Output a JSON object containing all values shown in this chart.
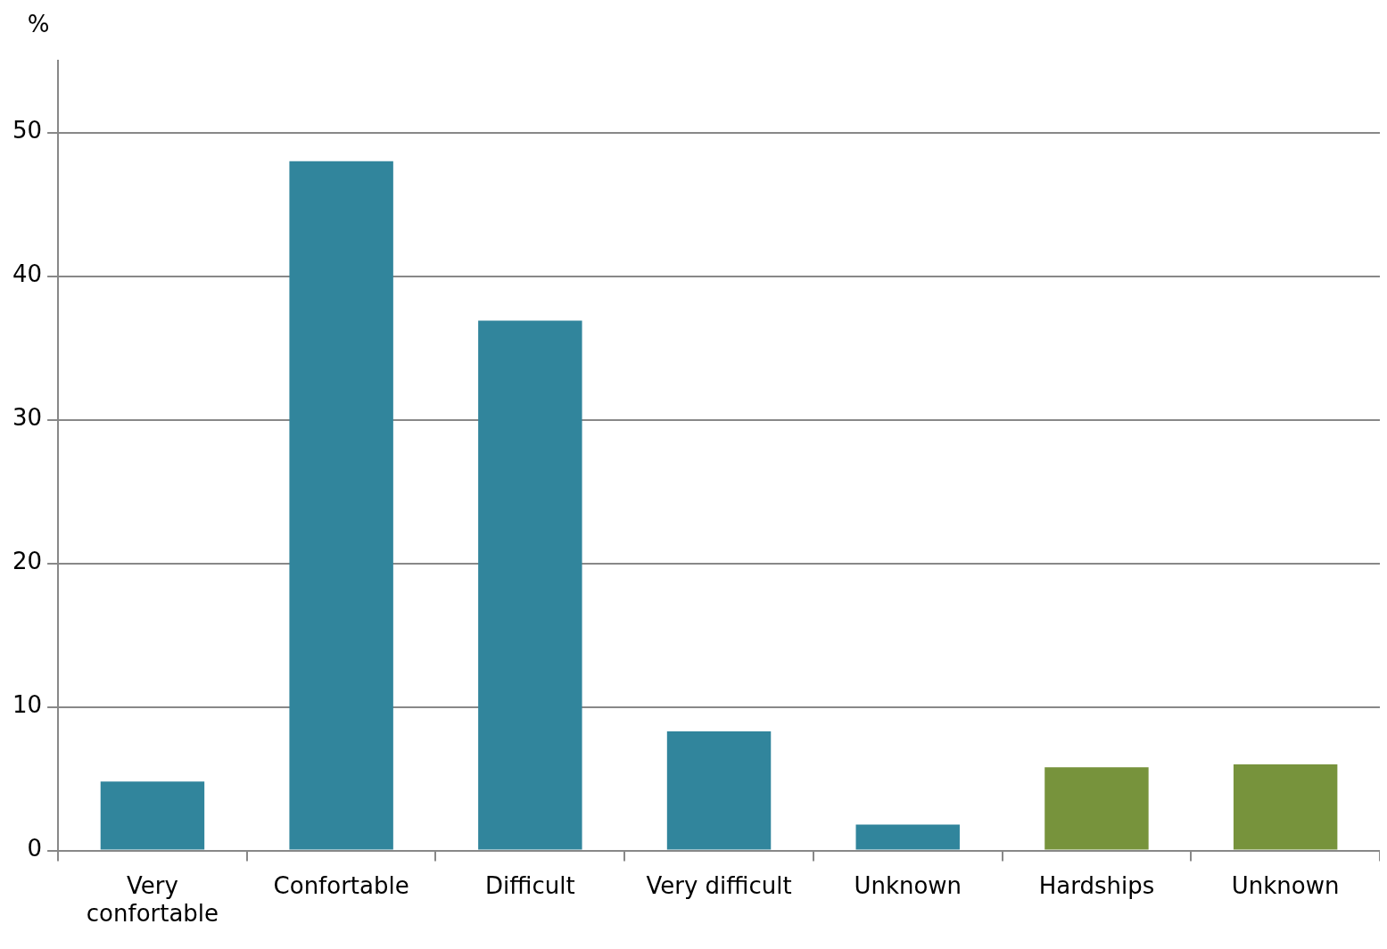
{
  "chart_data": {
    "type": "bar",
    "ylabel": "%",
    "categories": [
      "Very confortable",
      "Confortable",
      "Difficult",
      "Very difficult",
      "Unknown",
      "Hardships",
      "Unknown"
    ],
    "values": [
      4.8,
      48,
      36.9,
      8.3,
      1.8,
      5.8,
      6.0
    ],
    "colors": [
      "#31859c",
      "#31859c",
      "#31859c",
      "#31859c",
      "#31859c",
      "#77933c",
      "#77933c"
    ],
    "ylim": [
      0,
      55
    ],
    "yticks": [
      0,
      10,
      20,
      30,
      40,
      50
    ],
    "grid": "y",
    "legend": false
  }
}
